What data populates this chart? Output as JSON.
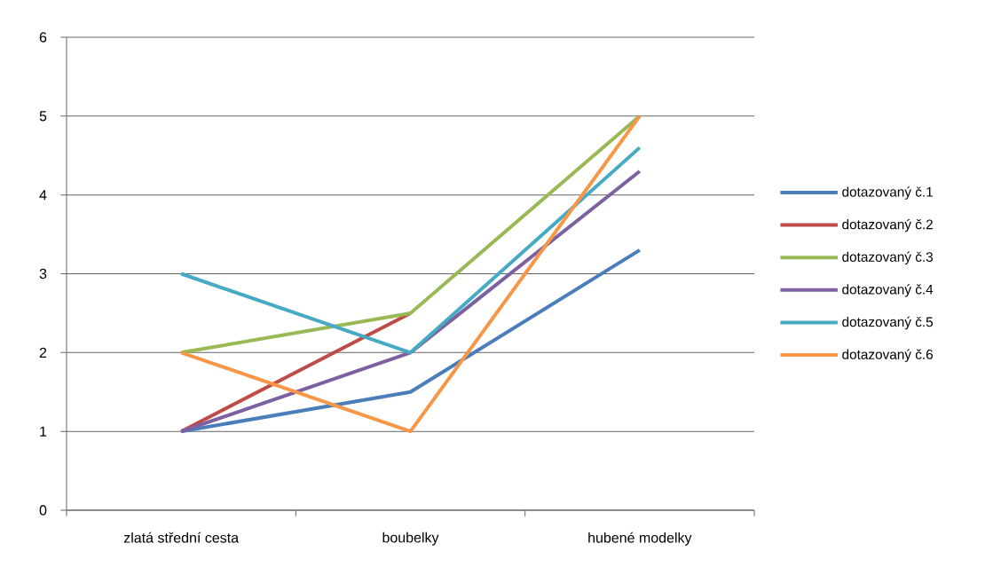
{
  "chart_data": {
    "type": "line",
    "categories": [
      "zlatá střední cesta",
      "boubelky",
      "hubené modelky"
    ],
    "series": [
      {
        "name": "dotazovaný č.1",
        "color": "#4a7ebb",
        "values": [
          1,
          1.5,
          3.3
        ]
      },
      {
        "name": "dotazovaný č.2",
        "color": "#be4b48",
        "values": [
          1,
          2.5,
          null
        ]
      },
      {
        "name": "dotazovaný č.3",
        "color": "#98b954",
        "values": [
          2,
          2.5,
          5
        ]
      },
      {
        "name": "dotazovaný č.4",
        "color": "#7d60a0",
        "values": [
          1,
          2,
          4.3
        ]
      },
      {
        "name": "dotazovaný č.5",
        "color": "#46aac5",
        "values": [
          3,
          2,
          4.6
        ]
      },
      {
        "name": "dotazovaný č.6",
        "color": "#f79646",
        "values": [
          2,
          1,
          5
        ]
      }
    ],
    "ylim": [
      0,
      6
    ],
    "yticks": [
      0,
      1,
      2,
      3,
      4,
      5,
      6
    ],
    "grid": "y",
    "legend": "right",
    "marker": "none",
    "line_style": "solid"
  }
}
